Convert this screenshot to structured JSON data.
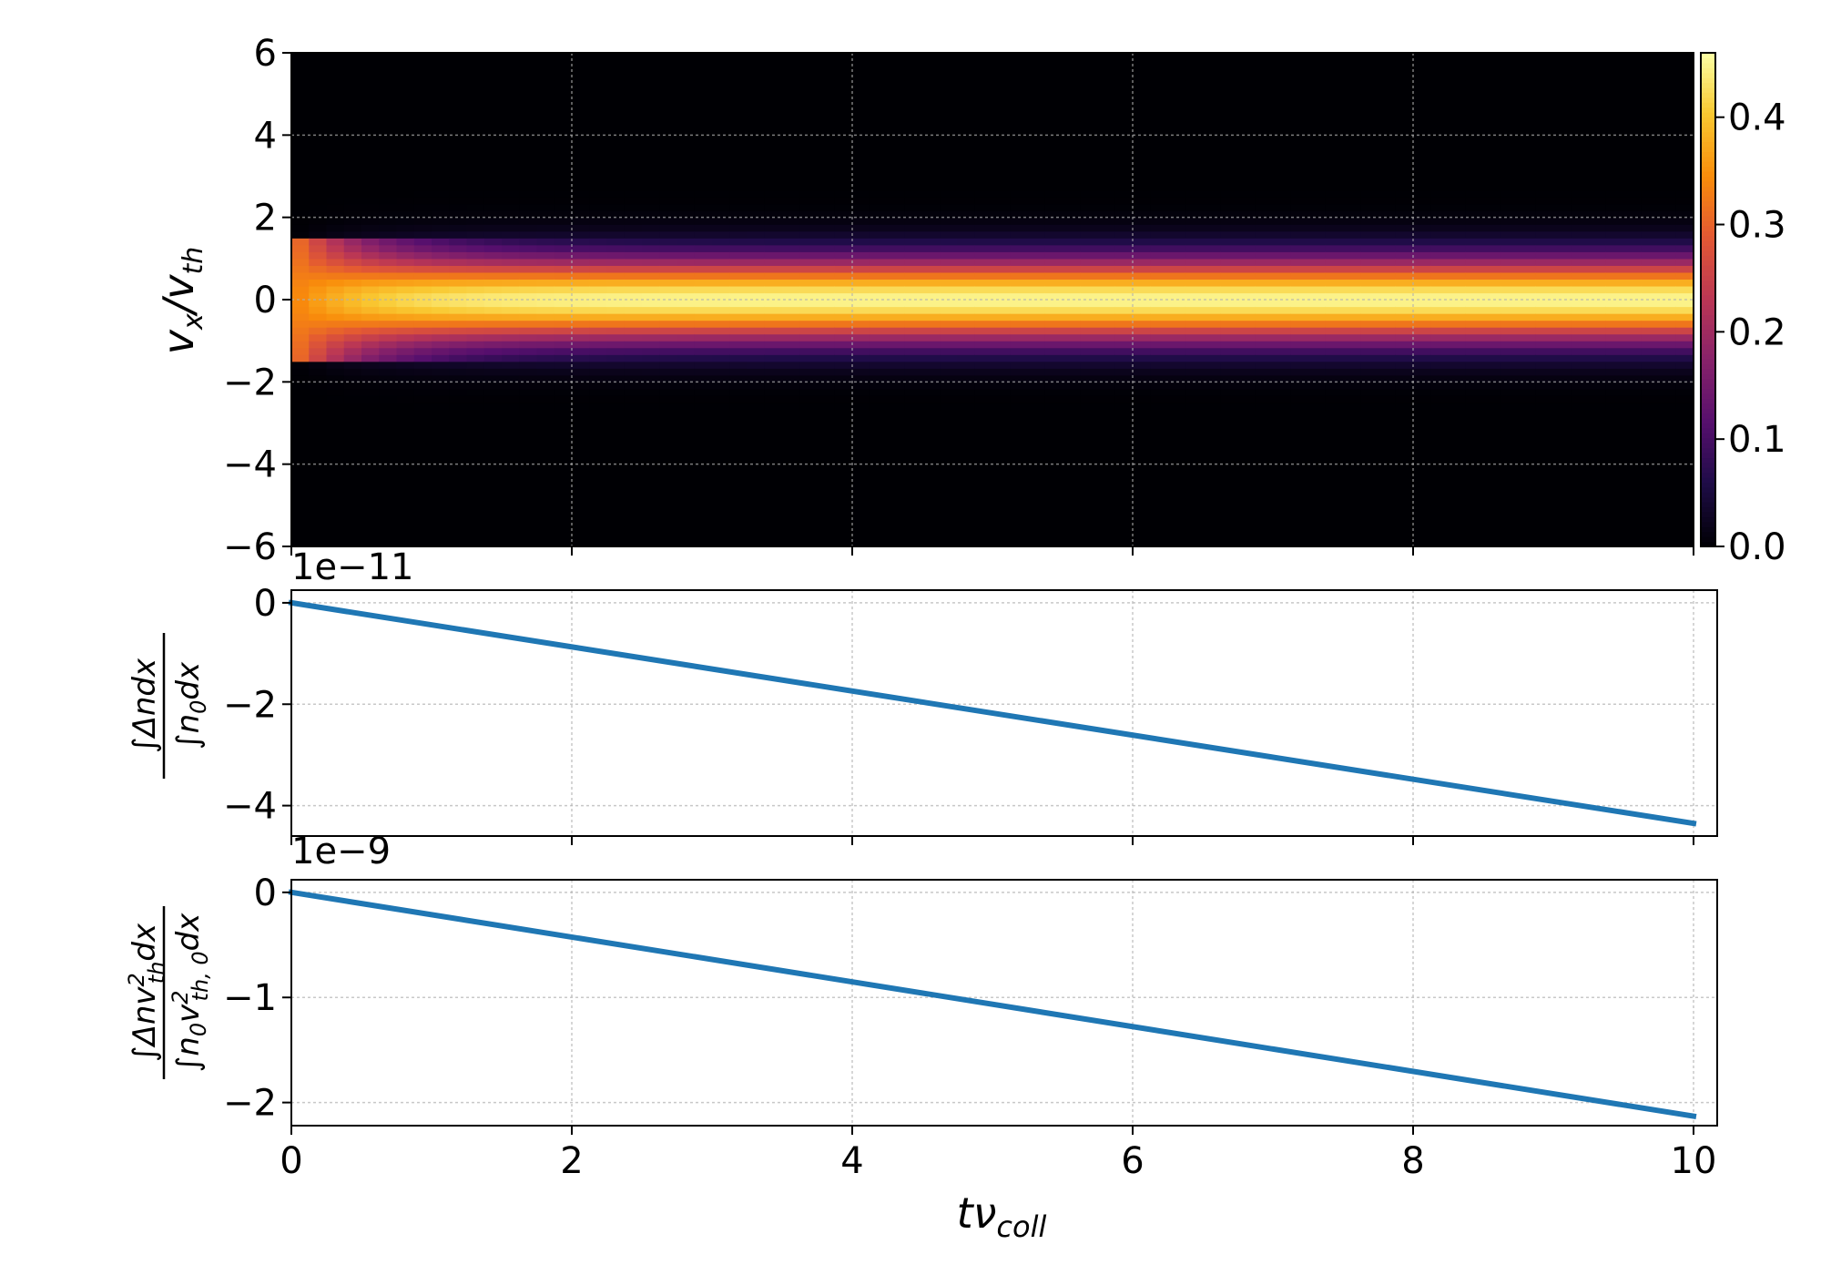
{
  "chart_data": [
    {
      "type": "heatmap",
      "title": "",
      "xlabel": "",
      "ylabel": "v_x/v_th",
      "ylabel_parts": {
        "main": "v",
        "sub1": "x",
        "sep": "/v",
        "sub2": "th"
      },
      "xlim": [
        0,
        10
      ],
      "ylim": [
        -6,
        6
      ],
      "x_ticks": [
        0,
        2,
        4,
        6,
        8,
        10
      ],
      "y_ticks": [
        6,
        4,
        2,
        0,
        -2,
        -4,
        -6
      ],
      "y_tick_labels": [
        "6",
        "4",
        "2",
        "0",
        "−2",
        "−4",
        "−6"
      ],
      "grid": true,
      "colormap": "inferno",
      "colorbar": {
        "min": 0.0,
        "max": 0.46,
        "ticks": [
          0.0,
          0.1,
          0.2,
          0.3,
          0.4
        ],
        "tick_labels": [
          "0.0",
          "0.1",
          "0.2",
          "0.3",
          "0.4"
        ]
      },
      "initial_state": {
        "t_end": 1.0,
        "v_half_width": 1.5,
        "value": 0.33
      },
      "equilibrium": {
        "peak": 0.45,
        "thermal_spread": 0.707
      }
    },
    {
      "type": "line",
      "title": "",
      "xlabel": "",
      "ylabel": "∫Δn dx / ∫n0 dx",
      "offset_text": "1e−11",
      "x_ticks": [
        0,
        2,
        4,
        6,
        8,
        10
      ],
      "y_ticks": [
        0,
        -2,
        -4
      ],
      "y_tick_labels": [
        "0",
        "−2",
        "−4"
      ],
      "ylim": [
        -4.6,
        0.25
      ],
      "grid": true,
      "series": [
        {
          "color": "#1f77b4",
          "x": [
            0,
            10
          ],
          "y": [
            0,
            -4.35
          ]
        }
      ]
    },
    {
      "type": "line",
      "title": "",
      "xlabel": "tν_coll",
      "xlabel_parts": {
        "main": "tν",
        "sub": "coll"
      },
      "ylabel": "∫Δn v_th^2 dx / ∫n0 v_th,0^2 dx",
      "offset_text": "1e−9",
      "x_ticks": [
        0,
        2,
        4,
        6,
        8,
        10
      ],
      "x_tick_labels": [
        "0",
        "2",
        "4",
        "6",
        "8",
        "10"
      ],
      "y_ticks": [
        0,
        -1,
        -2
      ],
      "y_tick_labels": [
        "0",
        "−1",
        "−2"
      ],
      "ylim": [
        -2.22,
        0.12
      ],
      "grid": true,
      "series": [
        {
          "color": "#1f77b4",
          "x": [
            0,
            10
          ],
          "y": [
            0,
            -2.13
          ]
        }
      ]
    }
  ]
}
